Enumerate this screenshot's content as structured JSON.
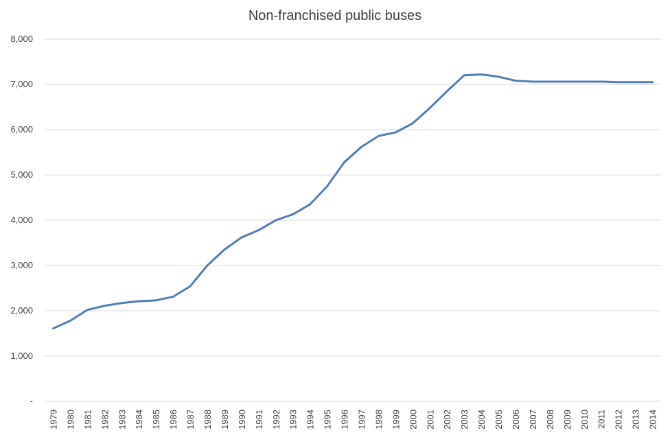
{
  "chart_data": {
    "type": "line",
    "title": "Non-franchised public buses",
    "xlabel": "",
    "ylabel": "",
    "ylim": [
      0,
      8000
    ],
    "y_ticks": [
      0,
      1000,
      2000,
      3000,
      4000,
      5000,
      6000,
      7000,
      8000
    ],
    "y_tick_labels": [
      "-",
      "1,000",
      "2,000",
      "3,000",
      "4,000",
      "5,000",
      "6,000",
      "7,000",
      "8,000"
    ],
    "grid": true,
    "legend": "none",
    "categories": [
      "1979",
      "1980",
      "1981",
      "1982",
      "1983",
      "1984",
      "1985",
      "1986",
      "1987",
      "1988",
      "1989",
      "1990",
      "1991",
      "1992",
      "1993",
      "1994",
      "1995",
      "1996",
      "1997",
      "1998",
      "1999",
      "2000",
      "2001",
      "2002",
      "2003",
      "2004",
      "2005",
      "2006",
      "2007",
      "2008",
      "2009",
      "2010",
      "2011",
      "2012",
      "2013",
      "2014"
    ],
    "series": [
      {
        "color": "#4f7db8",
        "values": [
          1610,
          1780,
          2020,
          2110,
          2170,
          2210,
          2230,
          2310,
          2540,
          3000,
          3350,
          3620,
          3780,
          4000,
          4130,
          4350,
          4750,
          5280,
          5620,
          5860,
          5940,
          6140,
          6480,
          6850,
          7200,
          7220,
          7170,
          7080,
          7060,
          7060,
          7060,
          7060,
          7060,
          7050,
          7050,
          7050
        ]
      }
    ]
  }
}
